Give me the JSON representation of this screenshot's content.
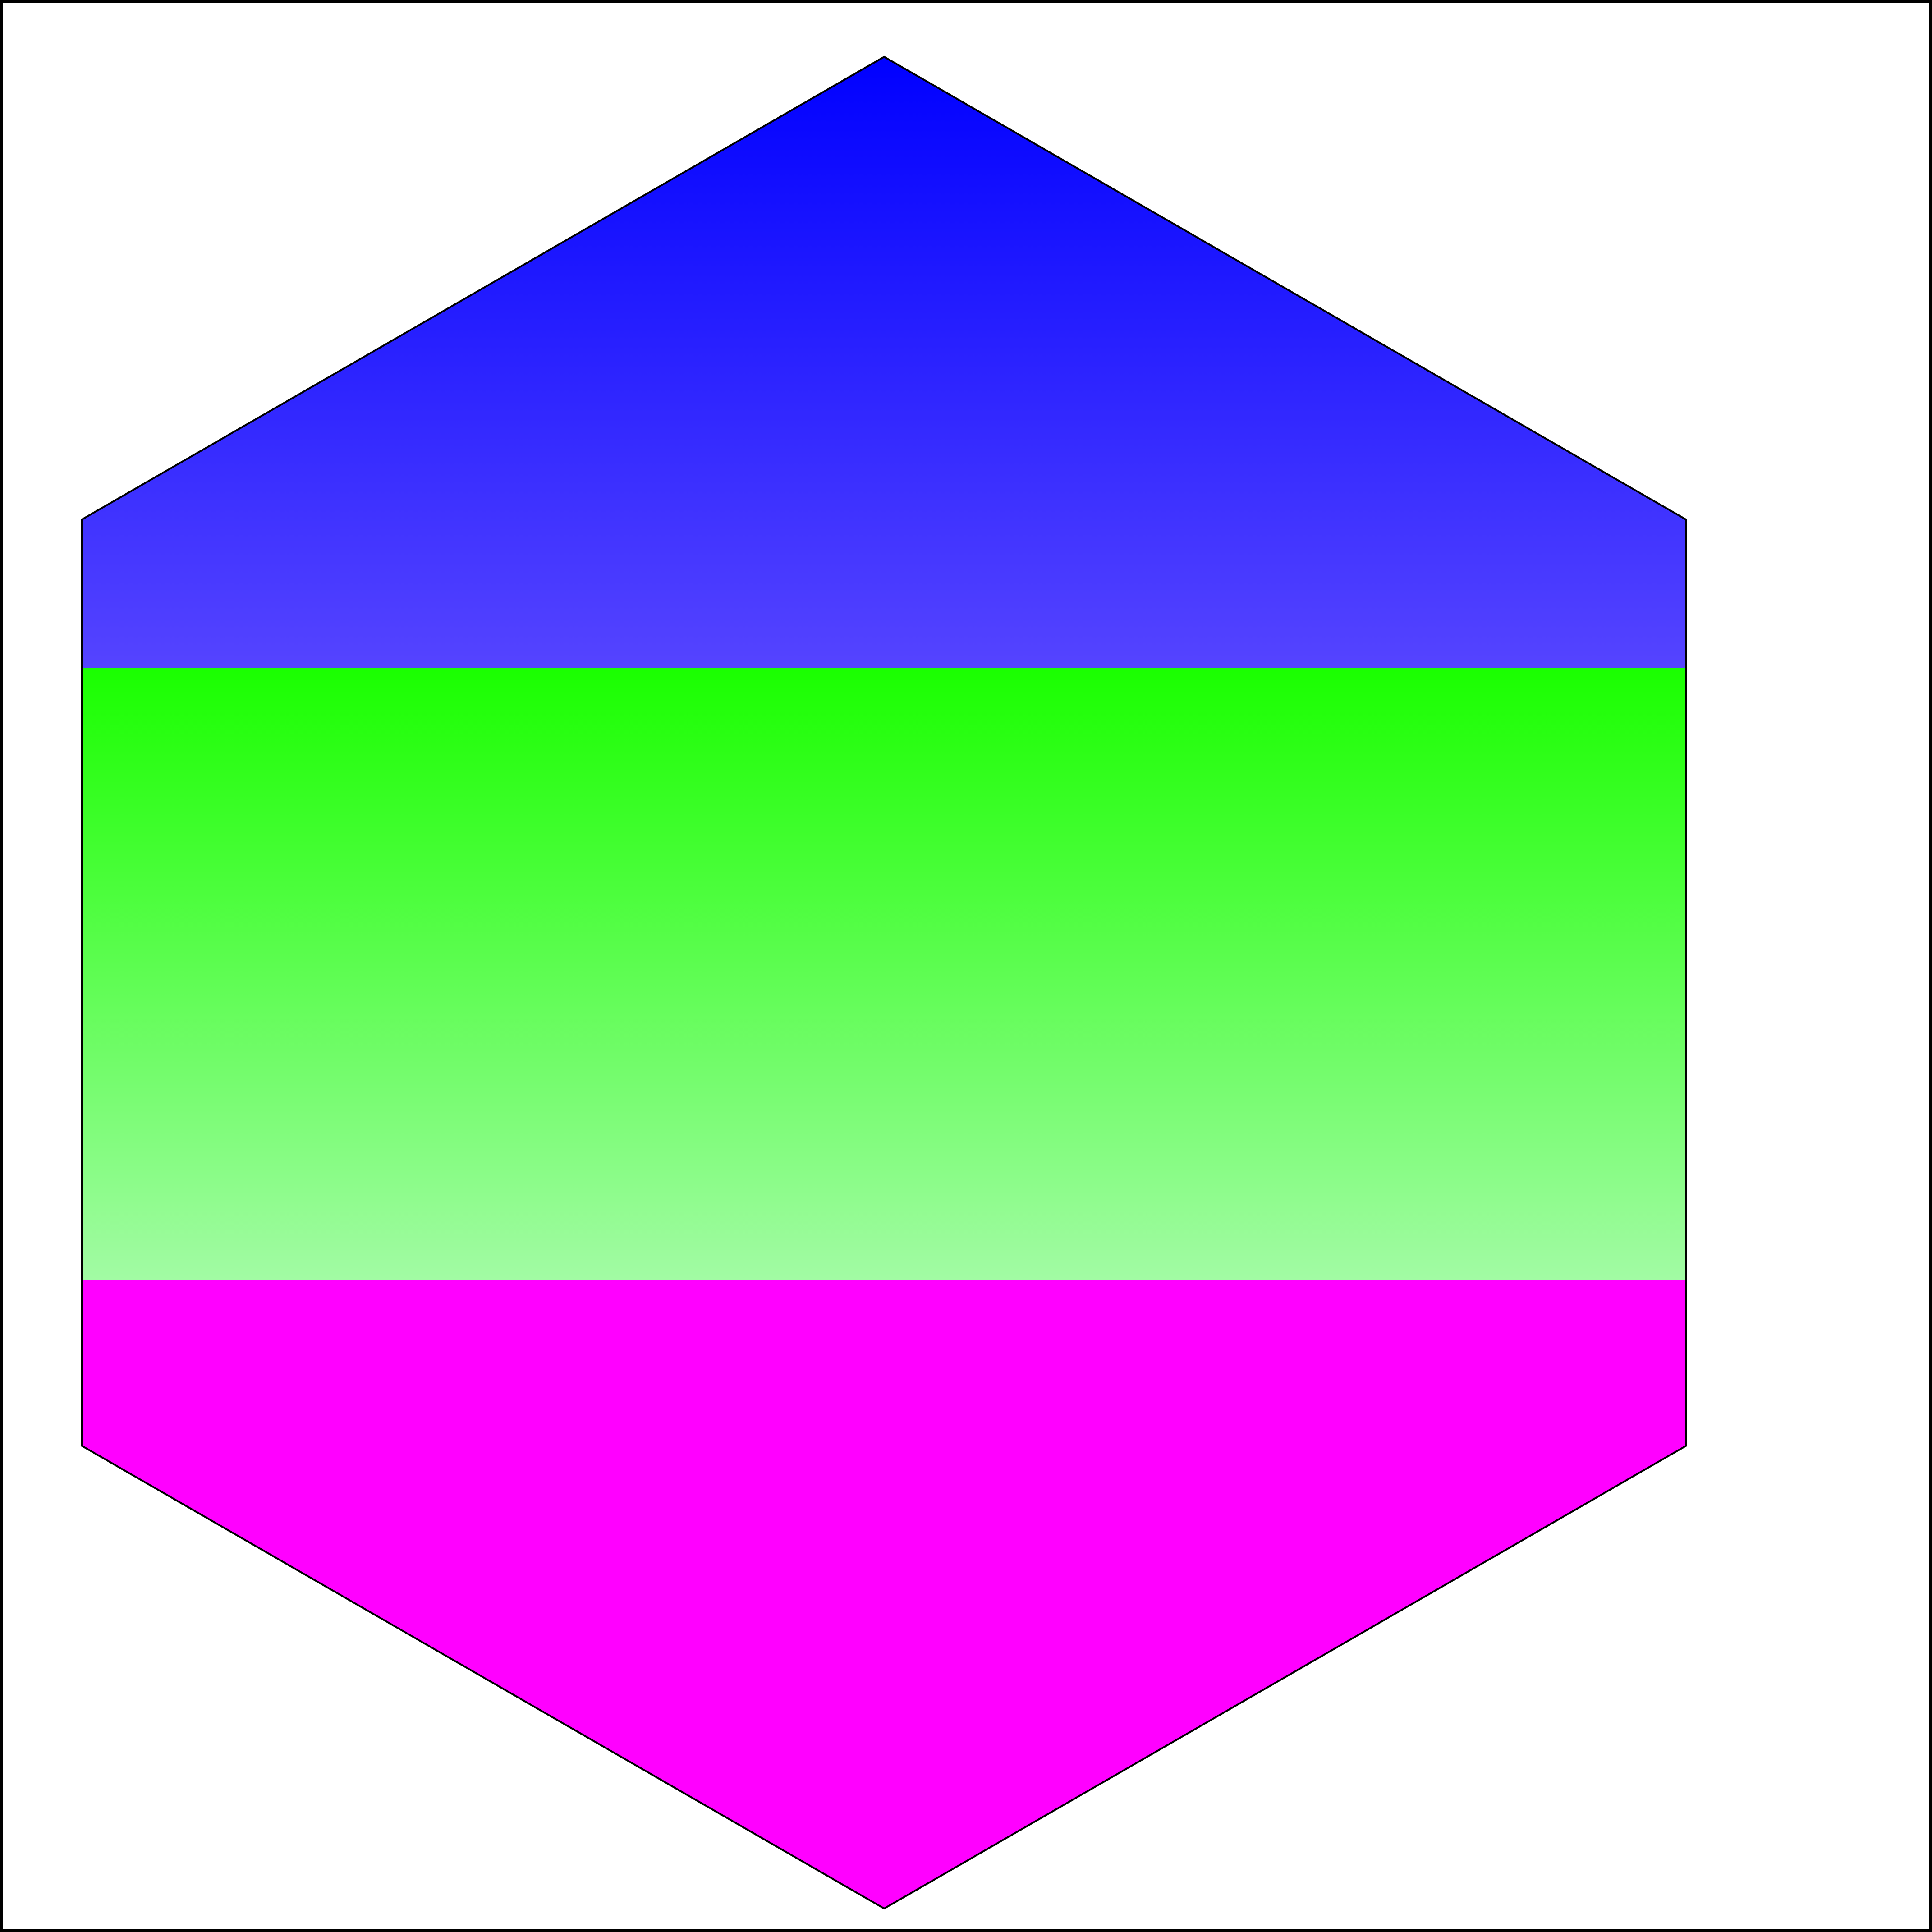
{
  "figure": {
    "background": "#ffffff",
    "frame_color": "#000000",
    "hexagon": {
      "outline_color": "#000000",
      "bands": [
        {
          "name": "blue-band",
          "gradient_top": "#0000ff",
          "gradient_bottom": "#5544ff"
        },
        {
          "name": "green-band",
          "gradient_top": "#1aff00",
          "gradient_bottom": "#a2fba4"
        },
        {
          "name": "magenta-band",
          "gradient_top": "#ff00ff",
          "gradient_bottom": "#ff00ff"
        }
      ]
    }
  }
}
